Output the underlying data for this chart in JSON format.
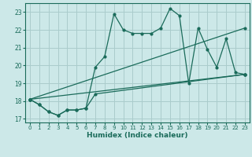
{
  "xlabel": "Humidex (Indice chaleur)",
  "xlim": [
    -0.5,
    23.5
  ],
  "ylim": [
    16.8,
    23.5
  ],
  "yticks": [
    17,
    18,
    19,
    20,
    21,
    22,
    23
  ],
  "xticks": [
    0,
    1,
    2,
    3,
    4,
    5,
    6,
    7,
    8,
    9,
    10,
    11,
    12,
    13,
    14,
    15,
    16,
    17,
    18,
    19,
    20,
    21,
    22,
    23
  ],
  "bg_color": "#cce8e8",
  "grid_color": "#aacccc",
  "line_color": "#1a6b5a",
  "line1_x": [
    0,
    1,
    2,
    3,
    4,
    5,
    6,
    7,
    8,
    9,
    10,
    11,
    12,
    13,
    14,
    15,
    16,
    17,
    18,
    19,
    20,
    21,
    22,
    23
  ],
  "line1_y": [
    18.1,
    17.8,
    17.4,
    17.2,
    17.5,
    17.5,
    17.6,
    19.9,
    20.5,
    22.9,
    22.0,
    21.8,
    21.8,
    21.8,
    22.1,
    23.2,
    22.8,
    19.0,
    22.1,
    20.9,
    19.9,
    21.5,
    19.6,
    19.5
  ],
  "line2_x": [
    0,
    1,
    2,
    3,
    4,
    5,
    6,
    7,
    23
  ],
  "line2_y": [
    18.1,
    17.8,
    17.4,
    17.2,
    17.5,
    17.5,
    17.6,
    18.4,
    19.5
  ],
  "line3_x": [
    0,
    23
  ],
  "line3_y": [
    18.1,
    19.5
  ],
  "line4_x": [
    0,
    23
  ],
  "line4_y": [
    18.1,
    22.1
  ]
}
